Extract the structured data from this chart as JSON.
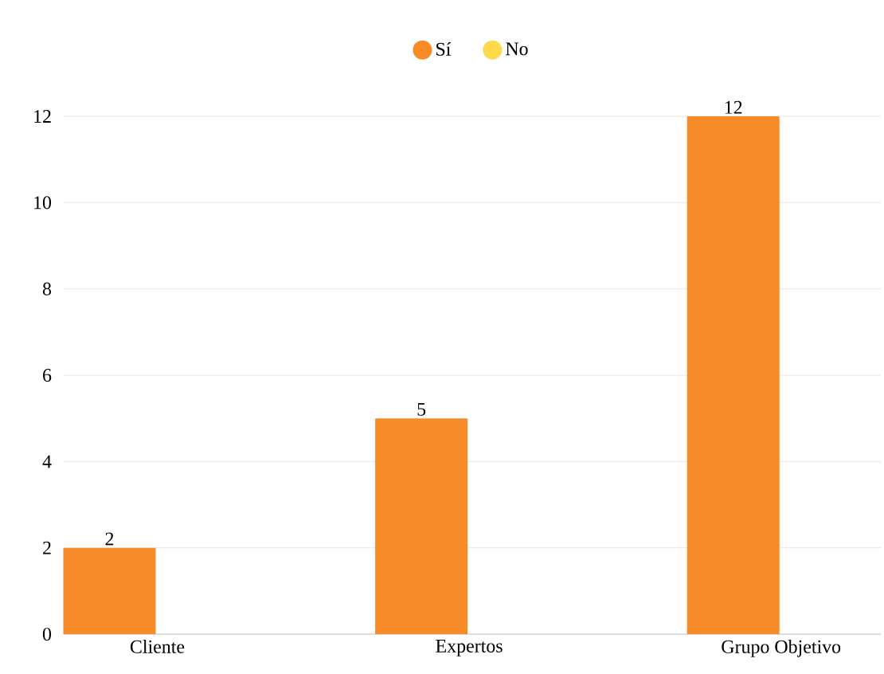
{
  "chart_data": {
    "type": "bar",
    "categories": [
      "Cliente",
      "Expertos",
      "Grupo Objetivo"
    ],
    "series": [
      {
        "name": "Sí",
        "color": "#f68b28",
        "values": [
          2,
          5,
          12
        ],
        "value_labels": [
          "2",
          "5",
          "12"
        ]
      },
      {
        "name": "No",
        "color": "#fdd94b",
        "values": [
          0,
          0,
          0
        ],
        "value_labels": [
          null,
          null,
          null
        ]
      }
    ],
    "ylim": [
      0,
      12
    ],
    "yticks": [
      0,
      2,
      4,
      6,
      8,
      10,
      12
    ],
    "grid": "y",
    "legend": "top",
    "marker": "circle"
  }
}
